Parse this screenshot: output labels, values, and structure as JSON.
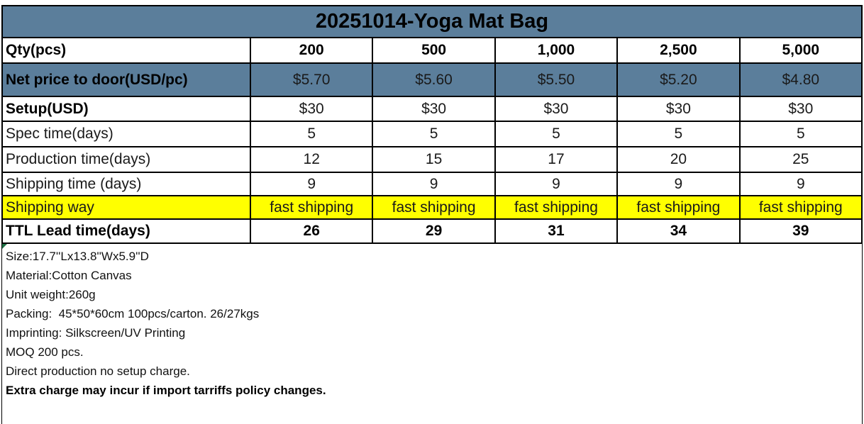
{
  "title": "20251014-Yoga Mat Bag",
  "colors": {
    "header_bg": "#5b7e9b",
    "highlight_bg": "#ffff00",
    "border": "#000000",
    "flag_green": "#1e7145"
  },
  "table": {
    "rows": [
      {
        "label": "Qty(pcs)",
        "values": [
          "200",
          "500",
          "1,000",
          "2,500",
          "5,000"
        ]
      },
      {
        "label": "Net price to door(USD/pc)",
        "values": [
          "$5.70",
          "$5.60",
          "$5.50",
          "$5.20",
          "$4.80"
        ]
      },
      {
        "label": "Setup(USD)",
        "values": [
          "$30",
          "$30",
          "$30",
          "$30",
          "$30"
        ]
      },
      {
        "label": "Spec time(days)",
        "values": [
          "5",
          "5",
          "5",
          "5",
          "5"
        ]
      },
      {
        "label": "Production time(days)",
        "values": [
          "12",
          "15",
          "17",
          "20",
          "25"
        ]
      },
      {
        "label": "Shipping time (days)",
        "values": [
          "9",
          "9",
          "9",
          "9",
          "9"
        ]
      },
      {
        "label": "Shipping way",
        "values": [
          "fast shipping",
          "fast shipping",
          "fast shipping",
          "fast shipping",
          "fast shipping"
        ]
      },
      {
        "label": "TTL Lead time(days)",
        "values": [
          "26",
          "29",
          "31",
          "34",
          "39"
        ]
      }
    ]
  },
  "notes": [
    "Size:17.7''Lx13.8''Wx5.9''D",
    "Material:Cotton Canvas",
    "Unit weight:260g",
    "Packing:  45*50*60cm 100pcs/carton. 26/27kgs",
    "Imprinting: Silkscreen/UV Printing",
    "MOQ 200 pcs.",
    "Direct production no setup charge.",
    "Extra charge may incur if import tarriffs policy changes."
  ]
}
